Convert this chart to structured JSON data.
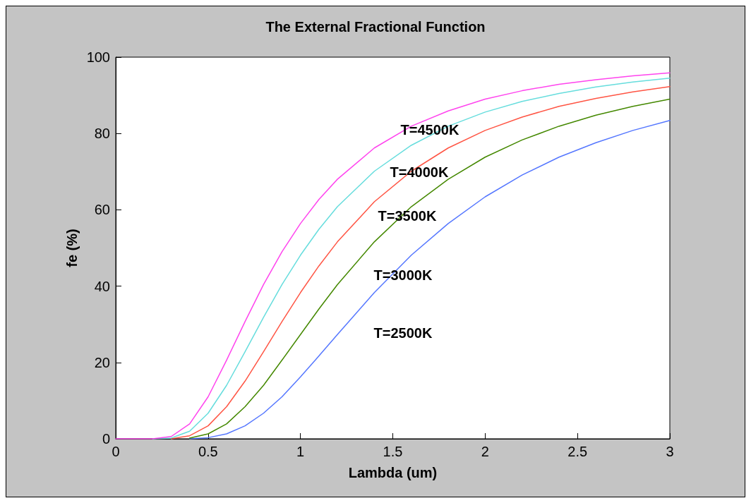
{
  "chart_data": {
    "type": "line",
    "title": "The External Fractional Function",
    "xlabel": "Lambda (um)",
    "ylabel": "fe (%)",
    "x": [
      0,
      0.2,
      0.3,
      0.4,
      0.5,
      0.6,
      0.7,
      0.8,
      0.9,
      1.0,
      1.1,
      1.2,
      1.4,
      1.6,
      1.8,
      2.0,
      2.2,
      2.4,
      2.6,
      2.8,
      3.0
    ],
    "xlim": [
      0,
      3
    ],
    "xticks": [
      0,
      0.5,
      1,
      1.5,
      2,
      2.5,
      3
    ],
    "ylim": [
      0,
      100
    ],
    "yticks": [
      0,
      20,
      40,
      60,
      80,
      100
    ],
    "grid": false,
    "marker": "none",
    "line_style": "solid",
    "series": [
      {
        "color": "#ff44ee",
        "values": [
          0,
          0,
          0.6,
          3.9,
          11.0,
          20.6,
          30.7,
          40.4,
          49.0,
          56.4,
          62.7,
          68.0,
          76.2,
          81.9,
          85.9,
          89.0,
          91.2,
          92.9,
          94.1,
          95.1,
          95.9
        ]
      },
      {
        "color": "#66dddd",
        "values": [
          null,
          0,
          0.2,
          2.0,
          6.7,
          14.0,
          22.8,
          31.8,
          40.4,
          48.1,
          54.9,
          60.8,
          70.1,
          76.9,
          81.9,
          85.6,
          88.4,
          90.5,
          92.2,
          93.5,
          94.5
        ]
      },
      {
        "color": "#ff5544",
        "values": [
          null,
          null,
          0,
          0.8,
          3.4,
          8.4,
          15.1,
          22.8,
          30.7,
          38.3,
          45.3,
          51.6,
          62.1,
          70.1,
          76.2,
          80.8,
          84.3,
          87.1,
          89.2,
          90.9,
          92.3
        ]
      },
      {
        "color": "#448800",
        "values": [
          null,
          null,
          null,
          0.2,
          1.3,
          3.9,
          8.4,
          14.0,
          20.6,
          27.3,
          34.0,
          40.4,
          51.6,
          60.8,
          68.0,
          73.8,
          78.3,
          81.9,
          84.8,
          87.1,
          89.0
        ]
      },
      {
        "color": "#5577ff",
        "values": [
          null,
          null,
          null,
          0,
          0.3,
          1.3,
          3.4,
          6.7,
          11.0,
          16.2,
          21.7,
          27.3,
          38.3,
          48.1,
          56.4,
          63.4,
          69.1,
          73.8,
          77.6,
          80.8,
          83.4
        ]
      }
    ],
    "annotations": [
      "T=4500K",
      "T=4000K",
      "T=3500K",
      "T=3000K",
      "T=2500K"
    ]
  }
}
